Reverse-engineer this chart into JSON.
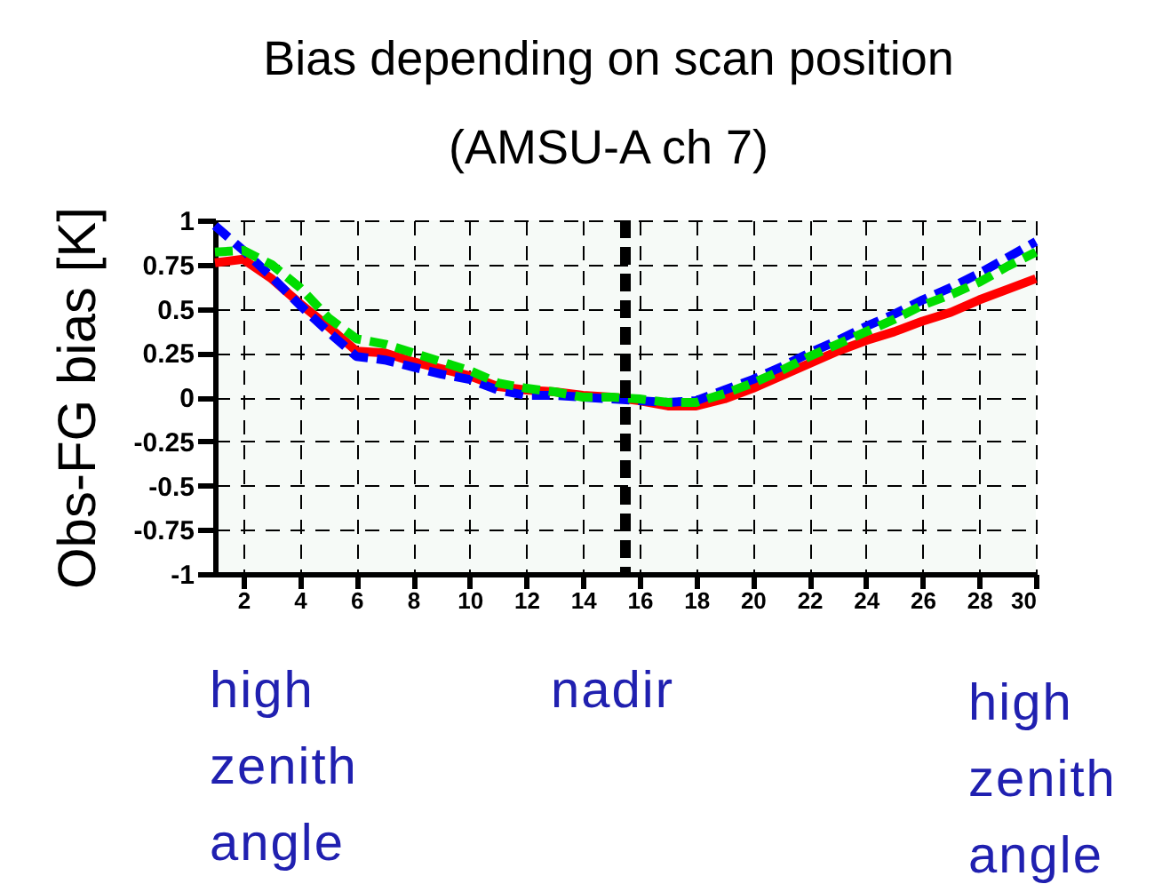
{
  "chart_data": {
    "type": "line",
    "title": "Bias depending on scan position (AMSU-A ch 7)",
    "ylabel": "Obs-FG bias [K]",
    "x": [
      1,
      2,
      3,
      4,
      5,
      6,
      7,
      8,
      9,
      10,
      11,
      12,
      13,
      14,
      15,
      16,
      17,
      18,
      19,
      20,
      21,
      22,
      23,
      24,
      25,
      26,
      27,
      28,
      29,
      30
    ],
    "series": [
      {
        "color": "#ff0000",
        "line_style": "solid",
        "values": [
          0.76,
          0.78,
          0.67,
          0.53,
          0.4,
          0.26,
          0.25,
          0.2,
          0.16,
          0.12,
          0.06,
          0.04,
          0.03,
          0.01,
          0,
          -0.02,
          -0.05,
          -0.05,
          -0.01,
          0.05,
          0.12,
          0.19,
          0.26,
          0.32,
          0.37,
          0.43,
          0.48,
          0.55,
          0.61,
          0.67
        ]
      },
      {
        "color": "#0000ff",
        "line_style": "dashed",
        "values": [
          0.97,
          0.83,
          0.68,
          0.52,
          0.37,
          0.23,
          0.21,
          0.17,
          0.13,
          0.1,
          0.04,
          0.01,
          0.01,
          0,
          -0.01,
          -0.02,
          -0.03,
          -0.02,
          0.04,
          0.1,
          0.17,
          0.25,
          0.32,
          0.4,
          0.47,
          0.55,
          0.62,
          0.7,
          0.79,
          0.88
        ]
      },
      {
        "color": "#00dd00",
        "line_style": "dashed",
        "values": [
          0.82,
          0.83,
          0.75,
          0.62,
          0.45,
          0.33,
          0.3,
          0.25,
          0.2,
          0.15,
          0.08,
          0.05,
          0.03,
          0,
          0,
          -0.01,
          -0.03,
          -0.03,
          0.02,
          0.08,
          0.15,
          0.23,
          0.3,
          0.37,
          0.44,
          0.52,
          0.58,
          0.65,
          0.74,
          0.82
        ]
      }
    ],
    "xlim": [
      1,
      30
    ],
    "xticks": [
      2,
      4,
      6,
      8,
      10,
      12,
      14,
      16,
      18,
      20,
      22,
      24,
      26,
      28,
      30
    ],
    "ylim": [
      -1,
      1
    ],
    "yticks": [
      -1,
      -0.75,
      -0.5,
      -0.25,
      0,
      0.25,
      0.5,
      0.75,
      1
    ],
    "grid": true,
    "legend": false,
    "ref_lines": [
      {
        "axis": "x",
        "value": 15.5,
        "color": "#000000",
        "line_style": "dashed"
      }
    ],
    "annotations": [
      "high zenith angle",
      "nadir",
      "high zenith angle"
    ]
  }
}
